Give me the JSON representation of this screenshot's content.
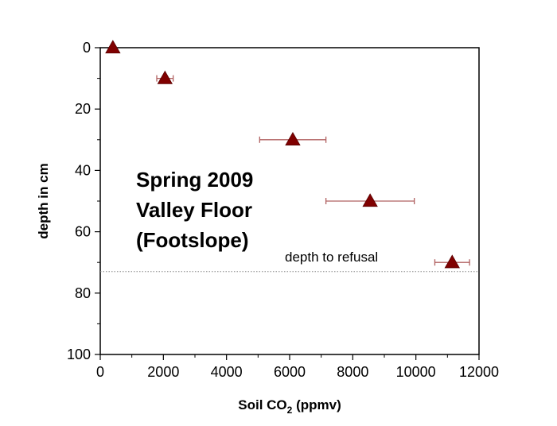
{
  "chart_data": {
    "type": "scatter",
    "title": "",
    "xlabel": "Soil CO",
    "xlabel_subscript": "2",
    "xlabel_suffix": " (ppmv)",
    "ylabel": "depth in cm",
    "xlim": [
      0,
      12000
    ],
    "ylim": [
      0,
      100
    ],
    "y_inverted": true,
    "x_ticks": [
      0,
      2000,
      4000,
      6000,
      8000,
      10000,
      12000
    ],
    "y_ticks": [
      0,
      20,
      40,
      60,
      80,
      100
    ],
    "grid": false,
    "marker": "triangle",
    "marker_color": "#800000",
    "errorbar_color": "#b06060",
    "series": [
      {
        "points": [
          {
            "x": 400,
            "y": 0,
            "xerr": 0
          },
          {
            "x": 2050,
            "y": 10,
            "xerr": 260
          },
          {
            "x": 6100,
            "y": 30,
            "xerr": 1050
          },
          {
            "x": 8550,
            "y": 50,
            "xerr": 1400
          },
          {
            "x": 11150,
            "y": 70,
            "xerr": 550
          }
        ]
      }
    ],
    "annotations": {
      "note_lines": [
        "Spring 2009",
        "Valley Floor",
        "(Footslope)"
      ],
      "reference_line": {
        "y": 73,
        "label": "depth to refusal",
        "style": "dotted"
      }
    }
  }
}
